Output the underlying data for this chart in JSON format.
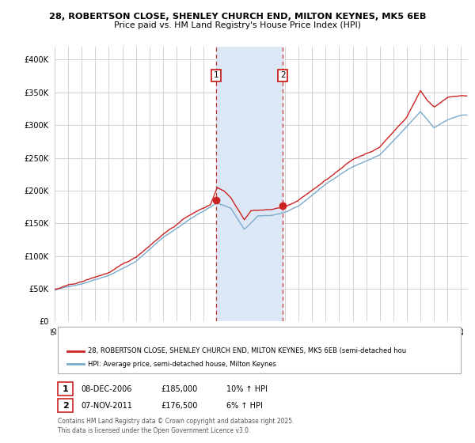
{
  "title_line1": "28, ROBERTSON CLOSE, SHENLEY CHURCH END, MILTON KEYNES, MK5 6EB",
  "title_line2": "Price paid vs. HM Land Registry's House Price Index (HPI)",
  "background_color": "#ffffff",
  "plot_bg_color": "#ffffff",
  "grid_color": "#cccccc",
  "shade_color": "#dce8f5",
  "red_line_color": "#cc2222",
  "blue_line_color": "#7aaacc",
  "ann1_x": 2006.92,
  "ann2_x": 2011.85,
  "ann1_y": 185000,
  "ann2_y": 176500,
  "legend_line1": "28, ROBERTSON CLOSE, SHENLEY CHURCH END, MILTON KEYNES, MK5 6EB (semi-detached hou",
  "legend_line2": "HPI: Average price, semi-detached house, Milton Keynes",
  "ann1_label": "1",
  "ann2_label": "2",
  "ann1_date": "08-DEC-2006",
  "ann1_price": "£185,000",
  "ann1_hpi": "10% ↑ HPI",
  "ann2_date": "07-NOV-2011",
  "ann2_price": "£176,500",
  "ann2_hpi": "6% ↑ HPI",
  "footer": "Contains HM Land Registry data © Crown copyright and database right 2025.\nThis data is licensed under the Open Government Licence v3.0.",
  "ylim": [
    0,
    420000
  ],
  "yticks": [
    0,
    50000,
    100000,
    150000,
    200000,
    250000,
    300000,
    350000,
    400000
  ],
  "xmin": 1995.0,
  "xmax": 2025.5
}
